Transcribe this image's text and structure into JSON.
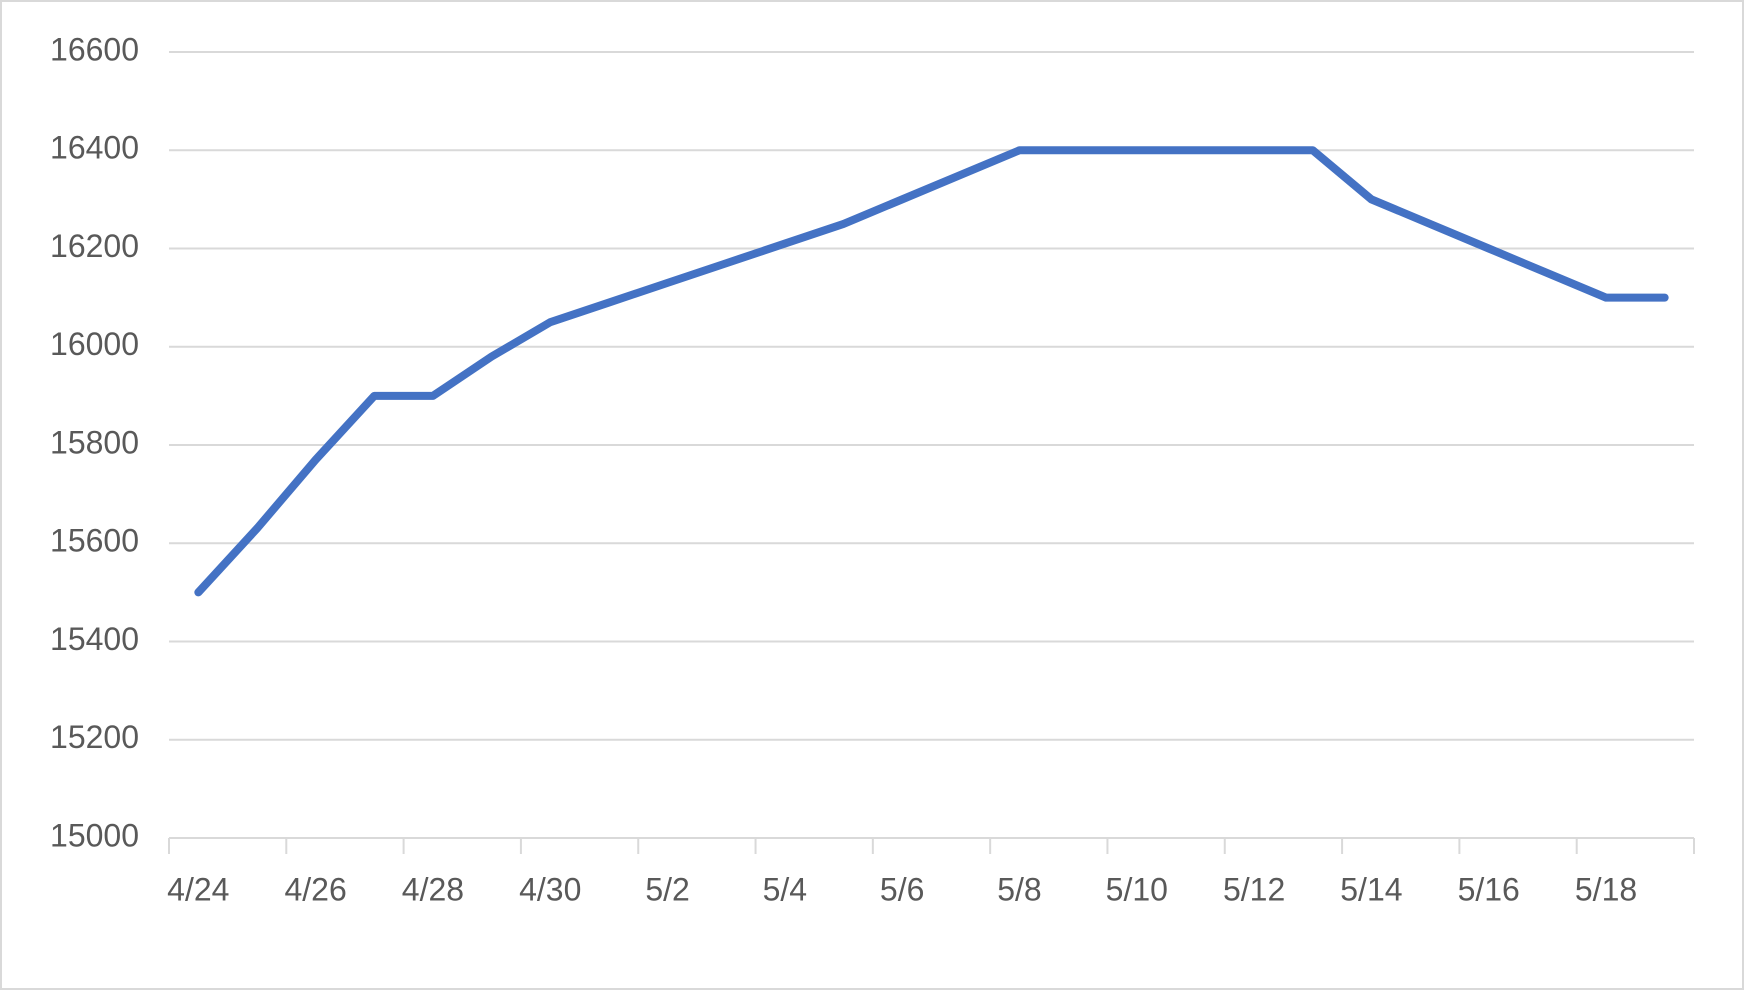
{
  "chart_data": {
    "type": "line",
    "categories": [
      "4/24",
      null,
      "4/26",
      null,
      "4/28",
      null,
      "4/30",
      null,
      "5/2",
      null,
      "5/4",
      null,
      "5/6",
      null,
      "5/8",
      null,
      "5/10",
      null,
      "5/12",
      null,
      "5/14",
      null,
      "5/16",
      null,
      "5/18",
      null
    ],
    "values": [
      15500,
      15630,
      15770,
      15900,
      15900,
      15980,
      16050,
      16090,
      16130,
      16170,
      16210,
      16250,
      16300,
      16350,
      16400,
      16400,
      16400,
      16400,
      16400,
      16400,
      16300,
      16250,
      16200,
      16150,
      16100,
      16100
    ],
    "color": "#4472c4",
    "ylim": [
      15000,
      16600
    ],
    "yticks": [
      15000,
      15200,
      15400,
      15600,
      15800,
      16000,
      16200,
      16400,
      16600
    ],
    "grid": true
  }
}
